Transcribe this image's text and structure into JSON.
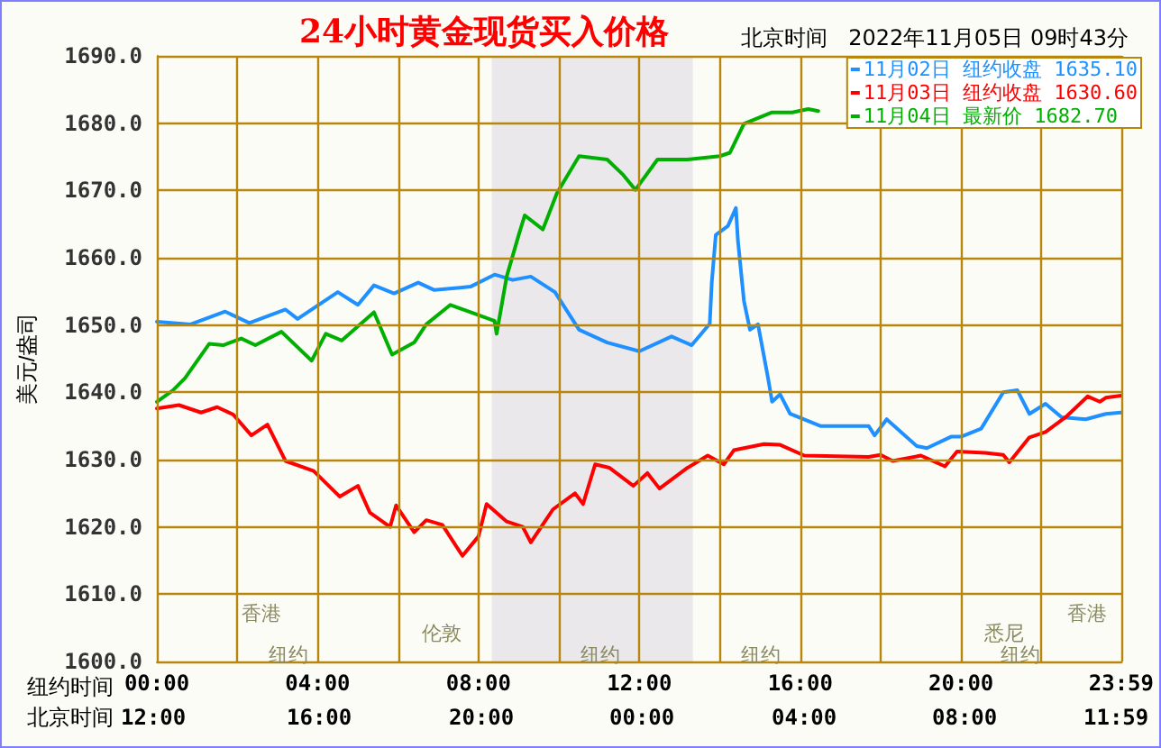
{
  "chart_data": {
    "type": "line",
    "title": "24小时黄金现货买入价格",
    "subtitle": "北京时间   2022年11月05日 09时43分",
    "xlabel": "纽约时间",
    "ylabel": "美元/盎司",
    "xlim": [
      0,
      24
    ],
    "xticks": [
      {
        "value": 0,
        "label": "00:00"
      },
      {
        "value": 2,
        "label": null
      },
      {
        "value": 4,
        "label": "04:00"
      },
      {
        "value": 6,
        "label": null
      },
      {
        "value": 8,
        "label": "08:00"
      },
      {
        "value": 10,
        "label": null
      },
      {
        "value": 12,
        "label": "12:00"
      },
      {
        "value": 14,
        "label": null
      },
      {
        "value": 16,
        "label": "16:00"
      },
      {
        "value": 18,
        "label": null
      },
      {
        "value": 20,
        "label": "20:00"
      },
      {
        "value": 22,
        "label": null
      },
      {
        "value": 23.983,
        "label": "23:59"
      }
    ],
    "ylim": [
      1600,
      1690
    ],
    "yticks": [
      {
        "value": 1600,
        "label": "1600.0"
      },
      {
        "value": 1610,
        "label": "1610.0"
      },
      {
        "value": 1620,
        "label": "1620.0"
      },
      {
        "value": 1630,
        "label": "1630.0"
      },
      {
        "value": 1640,
        "label": "1640.0"
      },
      {
        "value": 1650,
        "label": "1650.0"
      },
      {
        "value": 1660,
        "label": "1660.0"
      },
      {
        "value": 1670,
        "label": "1670.0"
      },
      {
        "value": 1680,
        "label": "1680.0"
      },
      {
        "value": 1690,
        "label": "1690.0"
      }
    ],
    "grid": true,
    "legend": "top right",
    "marker": "none",
    "line_style": "solid",
    "bands": [
      {
        "axis": "x",
        "from": 8.33,
        "to": 13.33,
        "color": "#ebe8ec"
      }
    ],
    "annotations": [
      "香港",
      "伦敦",
      "纽约",
      "纽约",
      "纽约",
      "香港",
      "悉尼",
      "纽约",
      "北京时间",
      "12:00",
      "16:00",
      "20:00",
      "00:00",
      "04:00",
      "08:00",
      "11:59"
    ],
    "series": [
      {
        "name": "11月02日 纽约收盘 1635.10",
        "color": "#1e90ff",
        "x": [
          0,
          0.84,
          1.7,
          2.3,
          3.2,
          3.5,
          4.5,
          5.0,
          5.4,
          5.9,
          6.5,
          6.9,
          7.8,
          8.4,
          8.85,
          9.3,
          9.9,
          10.5,
          11.2,
          12.0,
          12.8,
          13.3,
          13.75,
          13.8,
          13.9,
          14.2,
          14.4,
          14.45,
          14.6,
          14.75,
          14.95,
          15.2,
          15.3,
          15.5,
          15.75,
          16.5,
          17.7,
          17.85,
          18.15,
          18.9,
          19.15,
          19.75,
          20.0,
          20.5,
          21.05,
          21.4,
          21.7,
          22.1,
          22.5,
          23.1,
          23.6,
          23.98
        ],
        "values": [
          1650.5,
          1650.1,
          1652.0,
          1650.3,
          1652.3,
          1650.9,
          1654.9,
          1653.0,
          1655.9,
          1654.7,
          1656.3,
          1655.2,
          1655.7,
          1657.5,
          1656.7,
          1657.2,
          1654.9,
          1649.3,
          1647.4,
          1646.1,
          1648.3,
          1647.0,
          1650.2,
          1656.3,
          1663.4,
          1664.7,
          1667.4,
          1662.6,
          1653.6,
          1649.3,
          1650.1,
          1642.1,
          1638.6,
          1639.7,
          1636.8,
          1635.0,
          1635.0,
          1633.6,
          1636.0,
          1632.0,
          1631.7,
          1633.4,
          1633.4,
          1634.6,
          1640.0,
          1640.3,
          1636.8,
          1638.3,
          1636.3,
          1636.0,
          1636.8,
          1637.0
        ]
      },
      {
        "name": "11月03日 纽约收盘 1630.60",
        "color": "#ff0000",
        "x": [
          0,
          0.55,
          1.1,
          1.5,
          1.9,
          2.35,
          2.75,
          3.2,
          3.9,
          4.55,
          5.0,
          5.3,
          5.8,
          5.95,
          6.4,
          6.7,
          7.1,
          7.6,
          8.0,
          8.2,
          8.7,
          9.1,
          9.3,
          9.65,
          9.85,
          10.4,
          10.6,
          10.9,
          11.25,
          11.85,
          12.2,
          12.5,
          13.2,
          13.7,
          14.1,
          14.35,
          15.1,
          15.5,
          16.1,
          17.7,
          18.0,
          18.3,
          19.0,
          19.6,
          19.9,
          20.6,
          21.05,
          21.2,
          21.7,
          22.1,
          22.6,
          23.15,
          23.45,
          23.6,
          23.98
        ],
        "values": [
          1637.6,
          1638.1,
          1637.0,
          1637.8,
          1636.7,
          1633.6,
          1635.2,
          1629.8,
          1628.3,
          1624.5,
          1626.1,
          1622.1,
          1620.0,
          1623.2,
          1619.2,
          1621.0,
          1620.3,
          1615.7,
          1618.6,
          1623.4,
          1620.8,
          1620.0,
          1617.7,
          1620.8,
          1622.6,
          1625.0,
          1623.4,
          1629.3,
          1628.8,
          1626.1,
          1628.0,
          1625.7,
          1628.8,
          1630.6,
          1629.3,
          1631.4,
          1632.3,
          1632.2,
          1630.6,
          1630.4,
          1630.7,
          1629.8,
          1630.6,
          1629.0,
          1631.2,
          1631.0,
          1630.7,
          1629.6,
          1633.3,
          1634.1,
          1636.3,
          1639.4,
          1638.6,
          1639.2,
          1639.5
        ]
      },
      {
        "name": "11月04日 最新价 1682.70",
        "color": "#00b000",
        "x": [
          0,
          0.4,
          0.7,
          1.3,
          1.65,
          2.1,
          2.45,
          3.1,
          3.85,
          4.2,
          4.6,
          5.4,
          5.85,
          6.4,
          6.7,
          7.3,
          7.8,
          8.4,
          8.45,
          8.7,
          9.0,
          9.15,
          9.6,
          9.95,
          10.5,
          11.2,
          11.6,
          11.9,
          12.45,
          13.2,
          14.0,
          14.25,
          14.6,
          15.3,
          15.8,
          16.2,
          16.45
        ],
        "values": [
          1638.6,
          1640.3,
          1642.1,
          1647.2,
          1647.0,
          1648.0,
          1647.0,
          1649.0,
          1644.7,
          1648.7,
          1647.7,
          1651.9,
          1645.6,
          1647.4,
          1650.1,
          1653.0,
          1651.9,
          1650.6,
          1648.7,
          1657.2,
          1663.4,
          1666.3,
          1664.2,
          1669.6,
          1675.1,
          1674.6,
          1672.3,
          1670.1,
          1674.6,
          1674.6,
          1675.1,
          1675.6,
          1679.9,
          1681.6,
          1681.6,
          1682.1,
          1681.8
        ]
      }
    ]
  }
}
